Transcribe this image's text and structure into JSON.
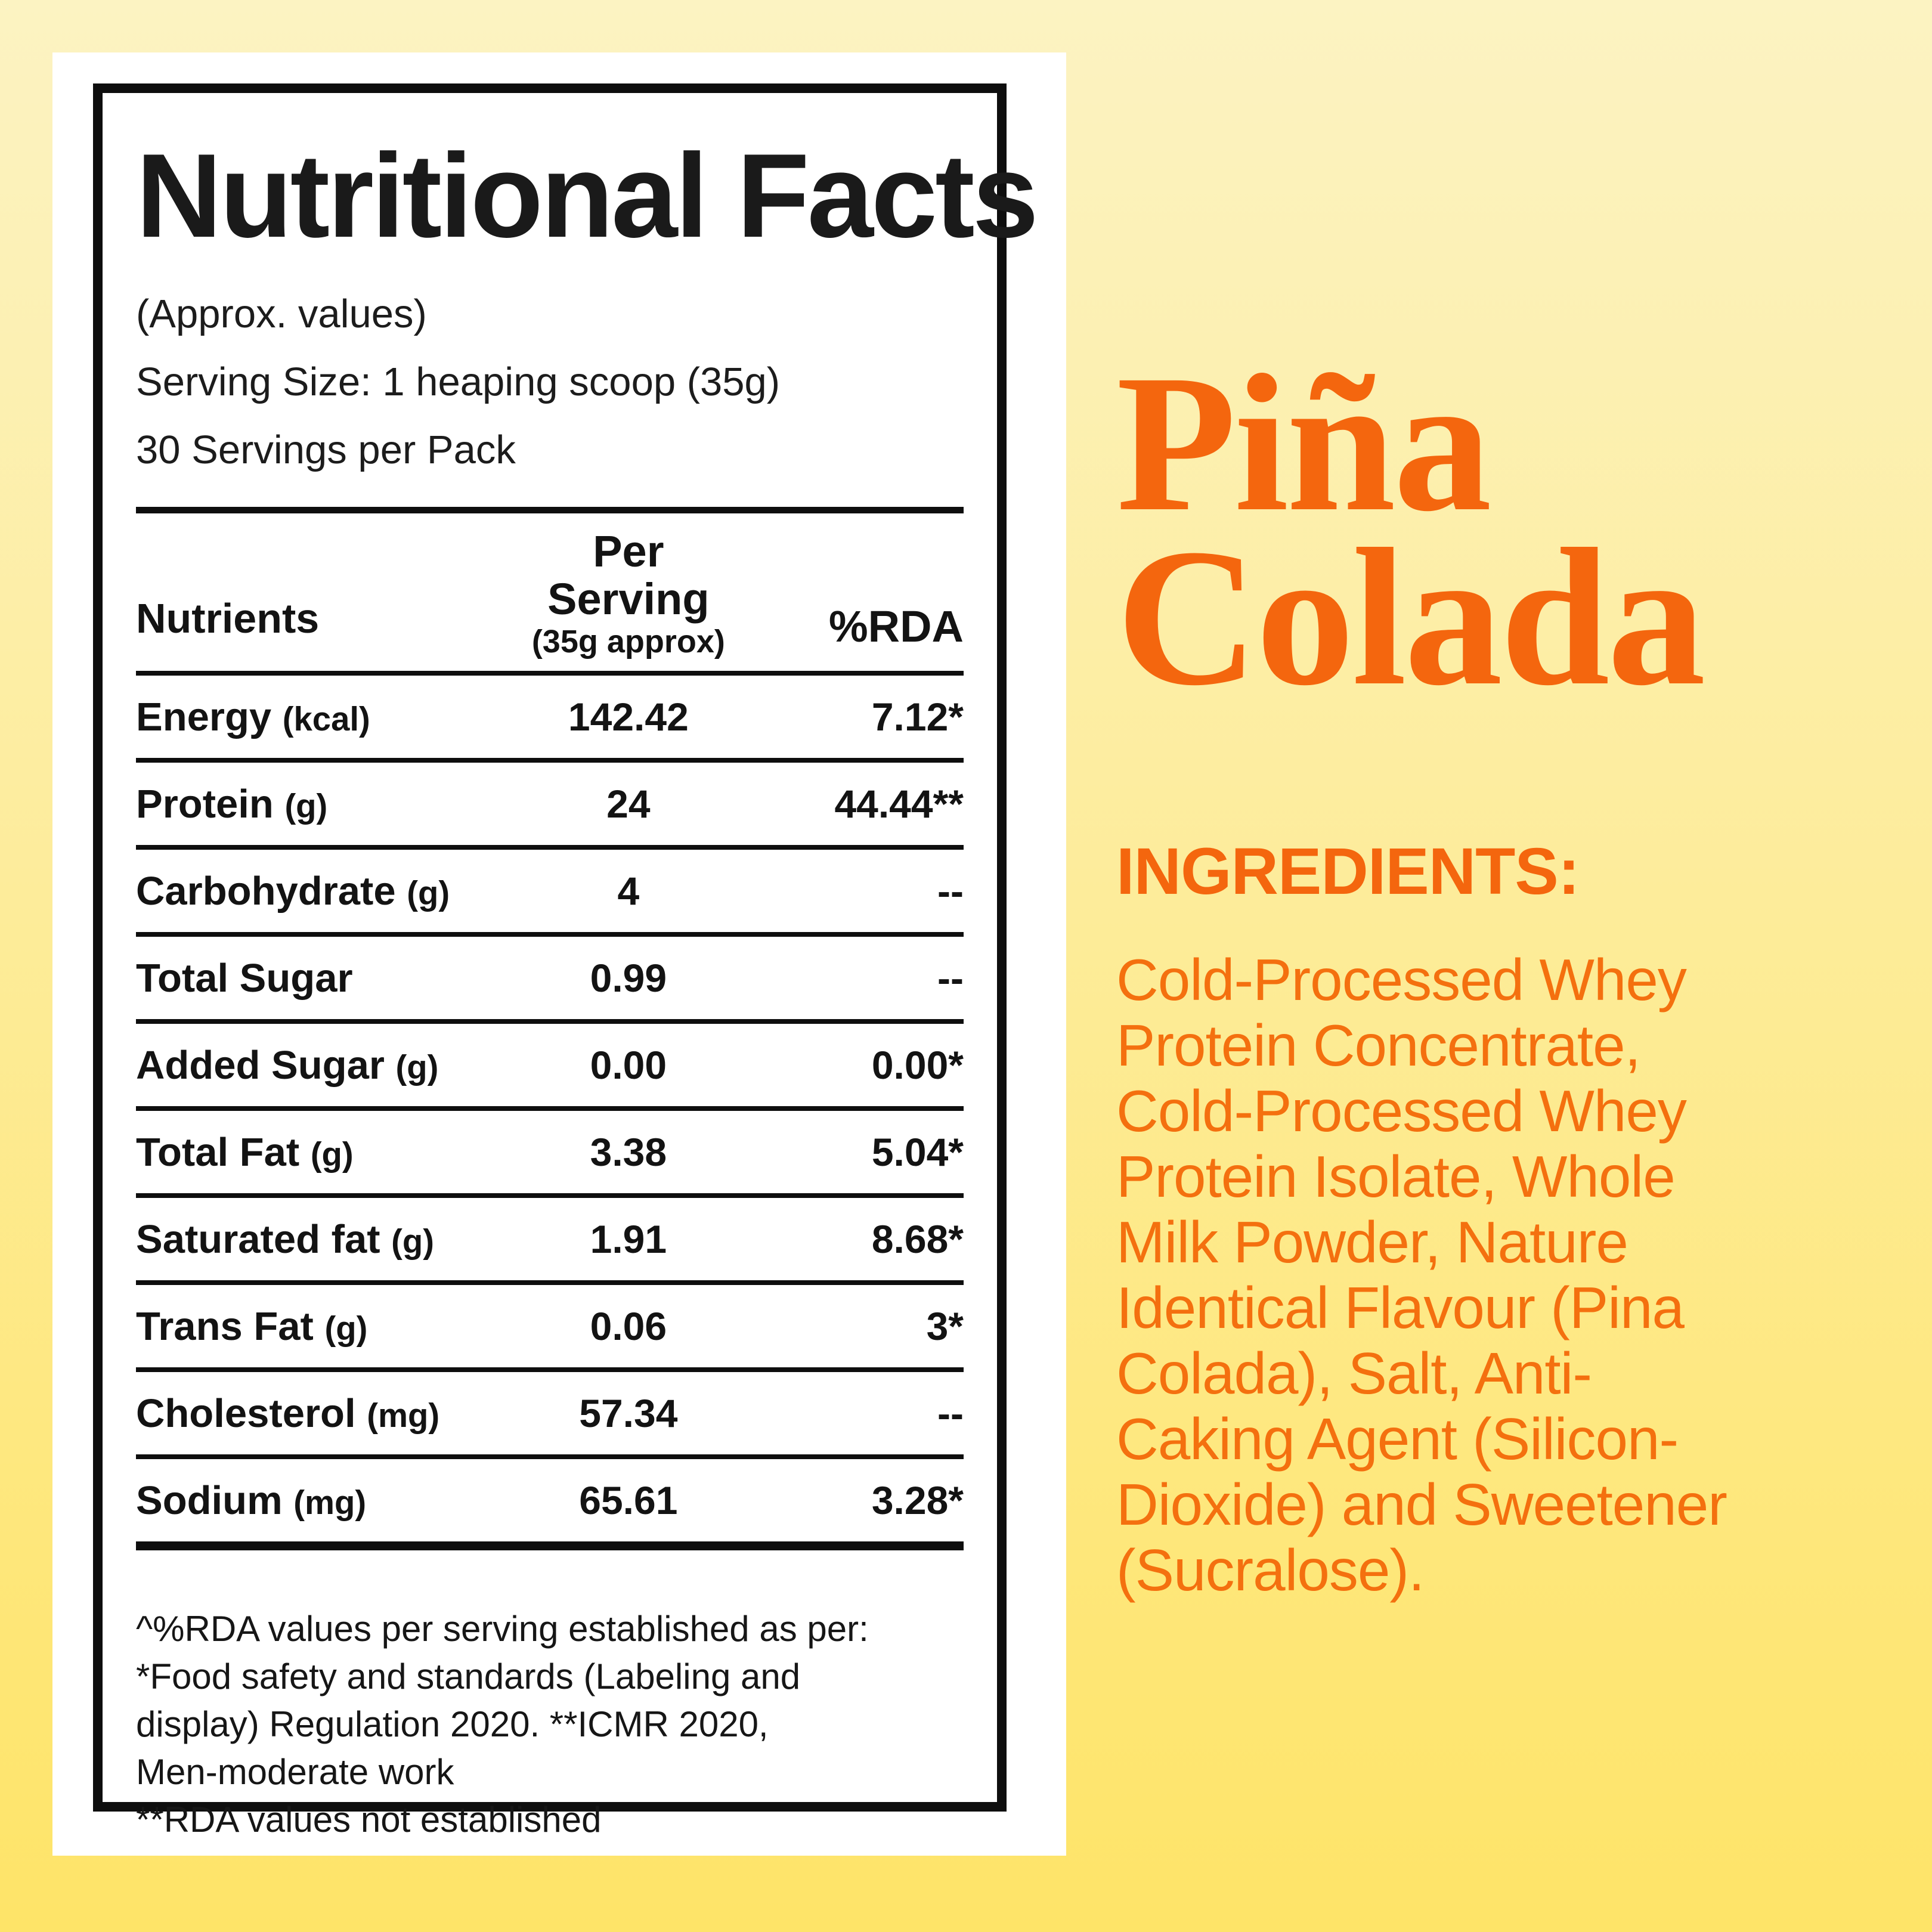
{
  "colors": {
    "background_top": "#FCF3C2",
    "background_bottom": "#FEE468",
    "card": "#FFFFFF",
    "table_ink": "#0E0E0E",
    "accent_orange_title": "#F4660E",
    "accent_orange_body": "#F4700F"
  },
  "card": {
    "title": "Nutritional Facts",
    "subtitle_lines": {
      "approx": "(Approx. values)",
      "serving_size": "Serving Size: 1 heaping scoop (35g)",
      "servings_per_pack": "30 Servings per Pack"
    },
    "table": {
      "col_nutrients": "Nutrients",
      "col_per_serving": "Per Serving",
      "col_per_serving_sub": "(35g approx)",
      "col_rda": "%RDA",
      "rows": [
        {
          "label": "Energy",
          "unit": "(kcal)",
          "value": "142.42",
          "rda": "7.12*"
        },
        {
          "label": "Protein",
          "unit": "(g)",
          "value": "24",
          "rda": "44.44**"
        },
        {
          "label": "Carbohydrate",
          "unit": "(g)",
          "value": "4",
          "rda": "--"
        },
        {
          "label": "Total Sugar",
          "unit": "",
          "value": "0.99",
          "rda": "--"
        },
        {
          "label": "Added Sugar",
          "unit": "(g)",
          "value": "0.00",
          "rda": "0.00*"
        },
        {
          "label": "Total Fat",
          "unit": "(g)",
          "value": "3.38",
          "rda": "5.04*"
        },
        {
          "label": "Saturated fat",
          "unit": "(g)",
          "value": "1.91",
          "rda": "8.68*"
        },
        {
          "label": "Trans Fat",
          "unit": "(g)",
          "value": "0.06",
          "rda": "3*"
        },
        {
          "label": "Cholesterol",
          "unit": "(mg)",
          "value": "57.34",
          "rda": "--"
        },
        {
          "label": "Sodium",
          "unit": "(mg)",
          "value": "65.61",
          "rda": "3.28*"
        }
      ]
    },
    "footnote_text": " ^%RDA values per serving established as per:\n*Food safety and standards (Labeling and\ndisplay) Regulation 2020. **ICMR 2020,\nMen-moderate work\n**RDA values not established"
  },
  "flavor": {
    "name_line1": "Piña",
    "name_line2": "Colada"
  },
  "ingredients": {
    "heading": "INGREDIENTS:",
    "body_text": "Cold-Processed Whey\nProtein Concentrate,\nCold-Processed Whey\nProtein Isolate, Whole\nMilk Powder, Nature\nIdentical Flavour (Pina\nColada), Salt, Anti-\nCaking Agent (Silicon-\nDioxide) and Sweetener\n(Sucralose)."
  }
}
